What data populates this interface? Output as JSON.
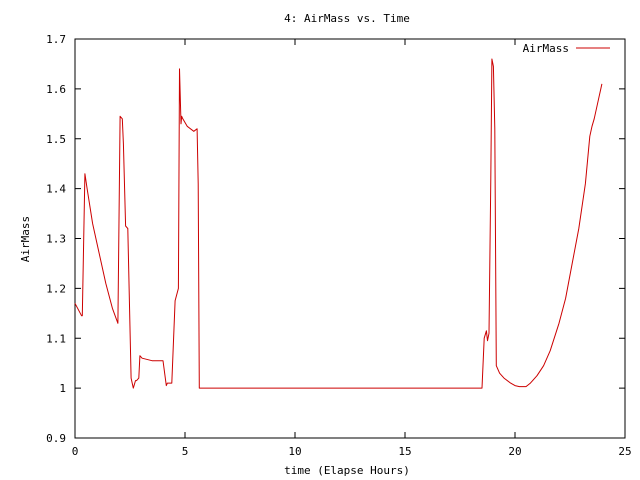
{
  "chart_data": {
    "type": "line",
    "title": "4: AirMass vs. Time",
    "xlabel": "time (Elapse Hours)",
    "ylabel": "AirMass",
    "xlim": [
      0,
      25
    ],
    "ylim": [
      0.9,
      1.7
    ],
    "xticks": [
      0,
      5,
      10,
      15,
      20,
      25
    ],
    "xtick_labels": [
      "0",
      "5",
      "10",
      "15",
      "20",
      "25"
    ],
    "yticks": [
      0.9,
      1.0,
      1.1,
      1.2,
      1.3,
      1.4,
      1.5,
      1.6,
      1.7
    ],
    "ytick_labels": [
      "0.9",
      "1",
      "1.1",
      "1.2",
      "1.3",
      "1.4",
      "1.5",
      "1.6",
      "1.7"
    ],
    "grid": false,
    "legend_position": "top-right",
    "series": [
      {
        "name": "AirMass",
        "color": "#cc0000",
        "x": [
          0.0,
          0.3,
          0.33,
          0.45,
          0.55,
          0.8,
          1.1,
          1.4,
          1.7,
          1.95,
          2.05,
          2.15,
          2.2,
          2.3,
          2.4,
          2.55,
          2.65,
          2.75,
          2.8,
          2.9,
          2.95,
          3.05,
          3.5,
          4.0,
          4.15,
          4.2,
          4.25,
          4.4,
          4.55,
          4.7,
          4.75,
          4.82,
          4.85,
          4.9,
          5.1,
          5.4,
          5.55,
          5.6,
          5.65,
          5.75,
          6.0,
          10.0,
          15.0,
          18.5,
          18.6,
          18.7,
          18.75,
          18.82,
          18.9,
          18.95,
          19.02,
          19.08,
          19.15,
          19.3,
          19.5,
          19.8,
          20.0,
          20.2,
          20.5,
          20.7,
          21.0,
          21.3,
          21.6,
          22.0,
          22.3,
          22.6,
          22.9,
          23.2,
          23.4,
          23.5,
          23.6,
          23.8,
          23.9,
          23.95
        ],
        "y": [
          1.17,
          1.145,
          1.145,
          1.43,
          1.4,
          1.33,
          1.27,
          1.21,
          1.16,
          1.13,
          1.545,
          1.54,
          1.49,
          1.325,
          1.32,
          1.02,
          1.0,
          1.015,
          1.015,
          1.02,
          1.065,
          1.06,
          1.055,
          1.055,
          1.005,
          1.01,
          1.01,
          1.01,
          1.175,
          1.2,
          1.64,
          1.53,
          1.545,
          1.54,
          1.525,
          1.515,
          1.52,
          1.41,
          1.0,
          1.0,
          1.0,
          1.0,
          1.0,
          1.0,
          1.1,
          1.115,
          1.095,
          1.11,
          1.42,
          1.66,
          1.645,
          1.52,
          1.045,
          1.03,
          1.02,
          1.01,
          1.005,
          1.003,
          1.003,
          1.01,
          1.025,
          1.045,
          1.075,
          1.13,
          1.18,
          1.25,
          1.32,
          1.41,
          1.505,
          1.525,
          1.54,
          1.58,
          1.6,
          1.61
        ]
      }
    ]
  }
}
